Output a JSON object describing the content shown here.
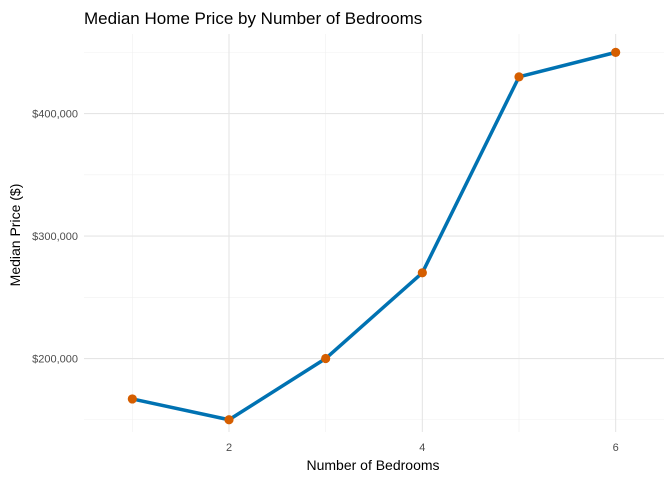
{
  "chart_data": {
    "type": "line",
    "title": "Median Home Price by Number of Bedrooms",
    "xlabel": "Number of Bedrooms",
    "ylabel": "Median Price ($)",
    "x": [
      1,
      2,
      3,
      4,
      5,
      6
    ],
    "series": [
      {
        "values": [
          167000,
          150000,
          200000,
          270000,
          430000,
          450000
        ]
      }
    ],
    "xlim": [
      0.5,
      6.5
    ],
    "ylim": [
      140000,
      465000
    ],
    "x_ticks": [
      2,
      4,
      6
    ],
    "x_tick_labels": [
      "2",
      "4",
      "6"
    ],
    "y_ticks": [
      200000,
      300000,
      400000
    ],
    "y_tick_labels": [
      "$200,000",
      "$300,000",
      "$400,000"
    ],
    "grid": true,
    "line_color": "#0072B2",
    "point_color": "#D55E00"
  }
}
